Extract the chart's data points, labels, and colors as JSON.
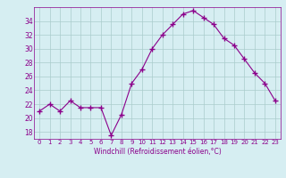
{
  "x": [
    0,
    1,
    2,
    3,
    4,
    5,
    6,
    7,
    8,
    9,
    10,
    11,
    12,
    13,
    14,
    15,
    16,
    17,
    18,
    19,
    20,
    21,
    22,
    23
  ],
  "y": [
    21,
    22,
    21,
    22.5,
    21.5,
    21.5,
    21.5,
    17.5,
    20.5,
    25,
    27,
    30,
    32,
    33.5,
    35,
    35.5,
    34.5,
    33.5,
    31.5,
    30.5,
    28.5,
    26.5,
    25,
    22.5
  ],
  "line_color": "#8B008B",
  "marker": "+",
  "marker_size": 4,
  "bg_color": "#d6eef2",
  "grid_color": "#aacccc",
  "xlabel": "Windchill (Refroidissement éolien,°C)",
  "xlabel_color": "#8B008B",
  "tick_color": "#8B008B",
  "spine_color": "#8B008B",
  "ylim": [
    17,
    36
  ],
  "yticks": [
    18,
    20,
    22,
    24,
    26,
    28,
    30,
    32,
    34
  ],
  "xlim": [
    -0.5,
    23.5
  ],
  "xticks": [
    0,
    1,
    2,
    3,
    4,
    5,
    6,
    7,
    8,
    9,
    10,
    11,
    12,
    13,
    14,
    15,
    16,
    17,
    18,
    19,
    20,
    21,
    22,
    23
  ]
}
